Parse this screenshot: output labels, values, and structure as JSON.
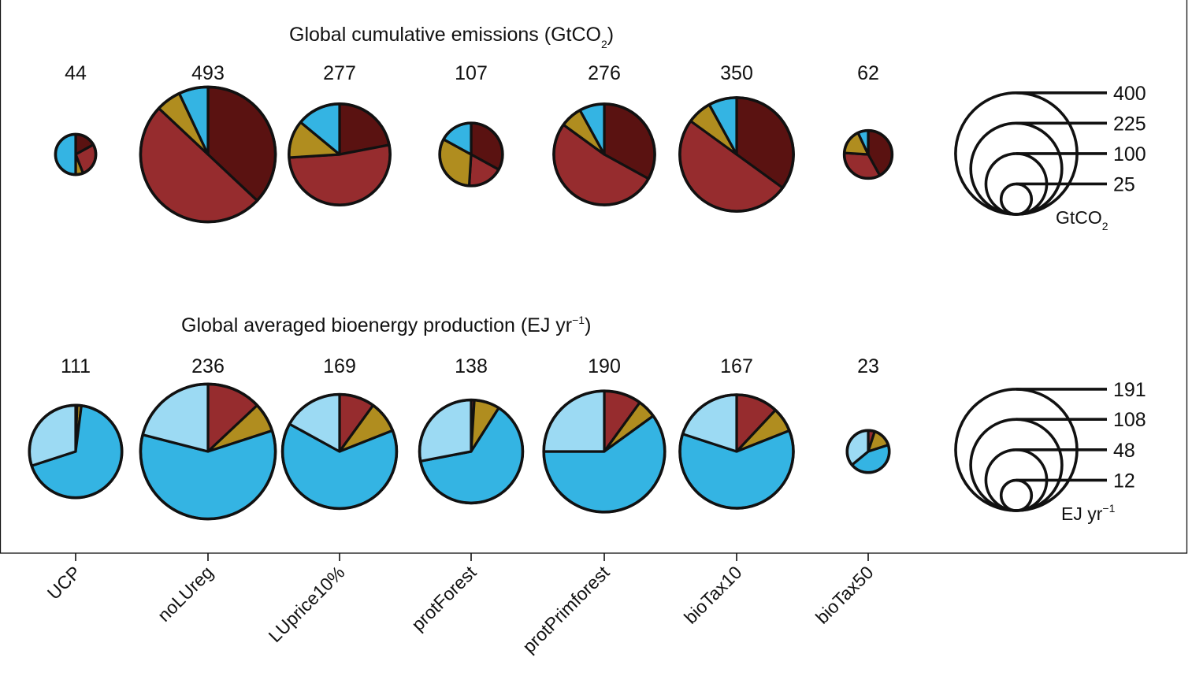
{
  "colors": {
    "brown_dark": "#5a1211",
    "brown_red": "#962c2e",
    "olive": "#b08d1f",
    "blue": "#34b4e3",
    "light_blue": "#9cdaf3"
  },
  "chart_data": [
    {
      "type": "pie",
      "title": "Global cumulative emissions (GtCO₂)",
      "title_main": "Global cumulative emissions (GtCO",
      "title_sub": "2",
      "title_end": ")",
      "categories": [
        "UCP",
        "noLUreg",
        "LUprice10%",
        "protForest",
        "protPrimforest",
        "bioTax10",
        "bioTax50"
      ],
      "totals": [
        44,
        493,
        277,
        107,
        276,
        350,
        62
      ],
      "slice_colors": [
        "#5a1211",
        "#962c2e",
        "#b08d1f",
        "#34b4e3"
      ],
      "slice_shares": [
        [
          0.17,
          0.27,
          0.06,
          0.5
        ],
        [
          0.37,
          0.5,
          0.06,
          0.07
        ],
        [
          0.22,
          0.52,
          0.12,
          0.14
        ],
        [
          0.33,
          0.18,
          0.32,
          0.17
        ],
        [
          0.33,
          0.52,
          0.07,
          0.08
        ],
        [
          0.35,
          0.5,
          0.07,
          0.08
        ],
        [
          0.42,
          0.34,
          0.17,
          0.07
        ]
      ],
      "size_legend": {
        "values": [
          400,
          225,
          100,
          25
        ],
        "unit": "GtCO₂",
        "unit_main": "GtCO",
        "unit_sub": "2"
      }
    },
    {
      "type": "pie",
      "title": "Global averaged bioenergy production (EJ yr⁻¹)",
      "title_main": "Global averaged bioenergy production (EJ yr",
      "title_sup": "−1",
      "title_end": ")",
      "categories": [
        "UCP",
        "noLUreg",
        "LUprice10%",
        "protForest",
        "protPrimforest",
        "bioTax10",
        "bioTax50"
      ],
      "totals": [
        111,
        236,
        169,
        138,
        190,
        167,
        23
      ],
      "slice_colors": [
        "#962c2e",
        "#b08d1f",
        "#34b4e3",
        "#9cdaf3"
      ],
      "slice_shares": [
        [
          0.005,
          0.015,
          0.68,
          0.3
        ],
        [
          0.13,
          0.07,
          0.59,
          0.21
        ],
        [
          0.1,
          0.09,
          0.64,
          0.17
        ],
        [
          0.01,
          0.08,
          0.63,
          0.28
        ],
        [
          0.1,
          0.05,
          0.6,
          0.25
        ],
        [
          0.12,
          0.07,
          0.61,
          0.2
        ],
        [
          0.05,
          0.15,
          0.44,
          0.36
        ]
      ],
      "size_legend": {
        "values": [
          191,
          108,
          48,
          12
        ],
        "unit": "EJ yr⁻¹",
        "unit_main": "EJ yr",
        "unit_sup": "−1"
      }
    }
  ],
  "x_axis": {
    "labels": [
      "UCP",
      "noLUreg",
      "LUprice10%",
      "protForest",
      "protPrimforest",
      "bioTax10",
      "bioTax50"
    ]
  }
}
